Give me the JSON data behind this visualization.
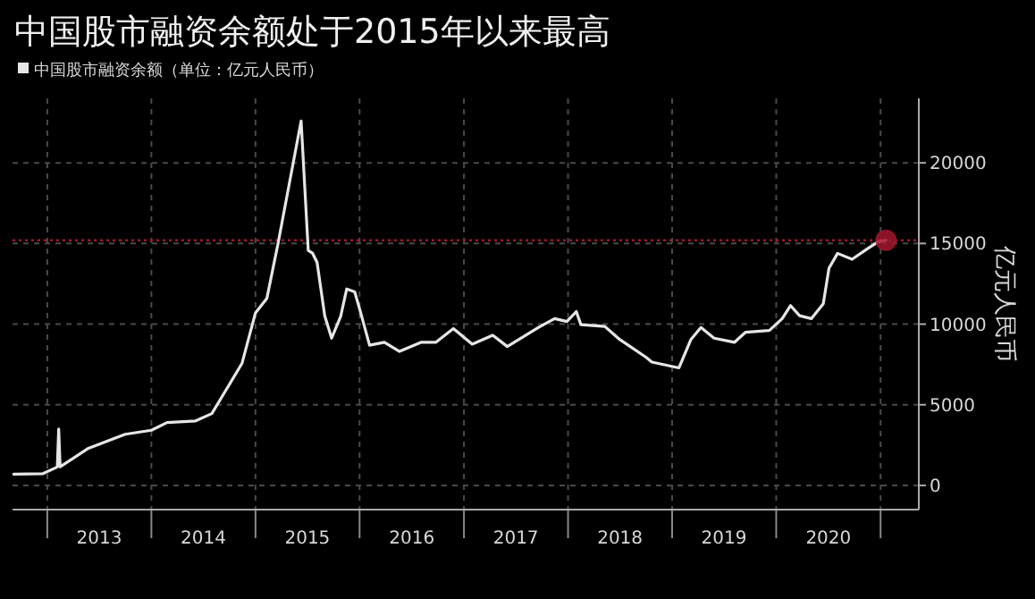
{
  "chart_data": {
    "type": "line",
    "title": "中国股市融资余额处于2015年以来最高",
    "ylabel": "亿元人民币",
    "legend": "top left",
    "grid": true,
    "xlim": [
      "2012-09-01",
      "2021-05-15"
    ],
    "ylim": [
      -1500,
      24000
    ],
    "yticks": [
      0,
      5000,
      10000,
      15000,
      20000
    ],
    "xticks": [
      {
        "value": "2013-01-01",
        "label": null
      },
      {
        "value": "2013-07-02",
        "label": "2013"
      },
      {
        "value": "2014-01-01",
        "label": null
      },
      {
        "value": "2014-07-02",
        "label": "2014"
      },
      {
        "value": "2015-01-01",
        "label": null
      },
      {
        "value": "2015-07-02",
        "label": "2015"
      },
      {
        "value": "2016-01-01",
        "label": null
      },
      {
        "value": "2016-07-02",
        "label": "2016"
      },
      {
        "value": "2017-01-01",
        "label": null
      },
      {
        "value": "2017-07-02",
        "label": "2017"
      },
      {
        "value": "2018-01-01",
        "label": null
      },
      {
        "value": "2018-07-02",
        "label": "2018"
      },
      {
        "value": "2019-01-01",
        "label": null
      },
      {
        "value": "2019-07-02",
        "label": "2019"
      },
      {
        "value": "2020-01-01",
        "label": null
      },
      {
        "value": "2020-07-02",
        "label": "2020"
      },
      {
        "value": "2021-01-01",
        "label": null
      }
    ],
    "ref_lines": [
      {
        "axis": "y",
        "value": 15200,
        "color": "#a3162f",
        "line_style": "dotted"
      }
    ],
    "series": [
      {
        "name": "中国股市融资余额（单位：亿元人民币）",
        "color": "#e6e6e6",
        "x": [
          "2012-09-05",
          "2012-12-15",
          "2013-02-05",
          "2013-02-10",
          "2013-02-15",
          "2013-05-25",
          "2013-10-01",
          "2014-01-01",
          "2014-02-25",
          "2014-06-05",
          "2014-08-01",
          "2014-11-15",
          "2015-01-01",
          "2015-02-10",
          "2015-03-20",
          "2015-06-10",
          "2015-07-05",
          "2015-07-20",
          "2015-08-05",
          "2015-09-01",
          "2015-09-25",
          "2015-10-27",
          "2015-11-17",
          "2015-12-15",
          "2016-01-05",
          "2016-02-05",
          "2016-03-28",
          "2016-05-20",
          "2016-08-03",
          "2016-09-24",
          "2016-11-25",
          "2017-01-30",
          "2017-04-12",
          "2017-06-02",
          "2017-09-20",
          "2017-11-15",
          "2017-12-28",
          "2018-01-30",
          "2018-02-15",
          "2018-05-10",
          "2018-07-01",
          "2018-10-01",
          "2018-10-22",
          "2019-01-25",
          "2019-03-08",
          "2019-04-12",
          "2019-05-28",
          "2019-08-07",
          "2019-09-16",
          "2019-12-08",
          "2020-01-22",
          "2020-02-20",
          "2020-03-23",
          "2020-05-03",
          "2020-06-14",
          "2020-07-04",
          "2020-08-03",
          "2020-09-23",
          "2020-11-14",
          "2020-12-25",
          "2021-01-20"
        ],
        "values": [
          700,
          720,
          1140,
          3500,
          1150,
          2300,
          3170,
          3420,
          3900,
          4000,
          4450,
          7580,
          10700,
          11600,
          14900,
          22600,
          14570,
          14400,
          13830,
          10500,
          9130,
          10500,
          12180,
          12000,
          10700,
          8690,
          8870,
          8310,
          8870,
          8870,
          9720,
          8760,
          9310,
          8610,
          9800,
          10340,
          10160,
          10780,
          9970,
          9860,
          9050,
          7950,
          7650,
          7290,
          9050,
          9790,
          9130,
          8870,
          9500,
          9610,
          10340,
          11150,
          10520,
          10340,
          11260,
          13470,
          14390,
          14020,
          14650,
          15120,
          15200
        ]
      },
      {
        "type": "scatter",
        "marker": "circle",
        "color": "#a3162f",
        "x": [
          "2021-01-20"
        ],
        "values": [
          15200
        ]
      }
    ]
  }
}
